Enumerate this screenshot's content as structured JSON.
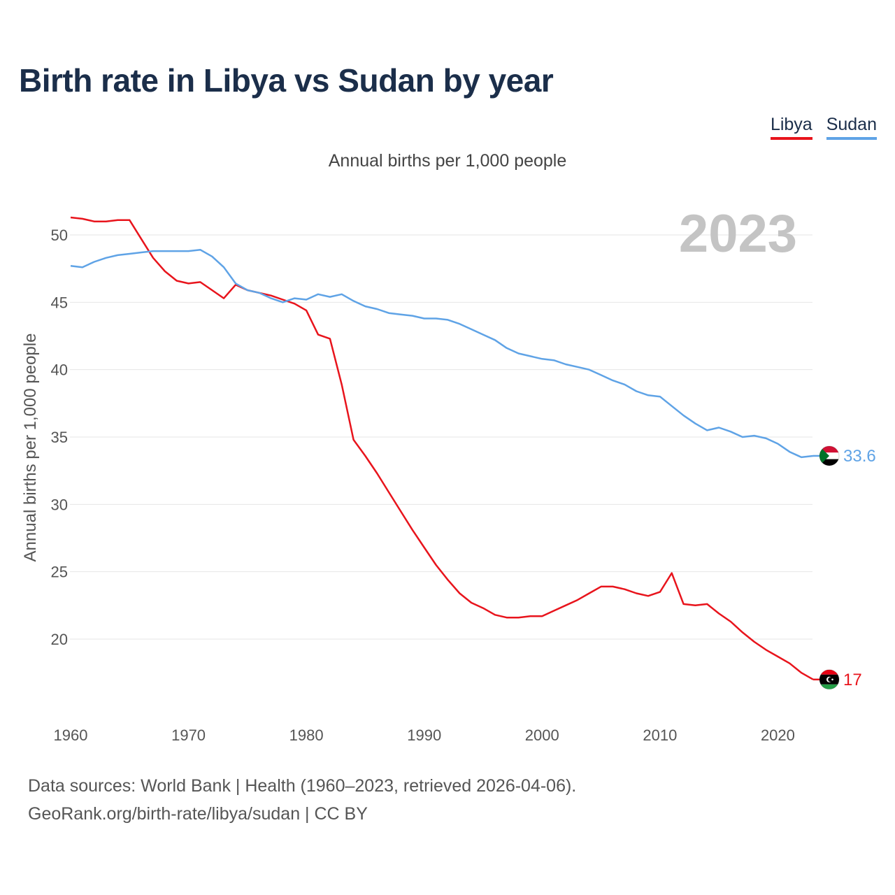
{
  "header": {
    "title": "Birth rate in Libya vs Sudan by year",
    "subtitle": "Annual births per 1,000 people"
  },
  "legend": [
    {
      "name": "Libya",
      "color": "#e8141c"
    },
    {
      "name": "Sudan",
      "color": "#5fa3e6"
    }
  ],
  "footer": {
    "source_line1": "Data sources: World Bank | Health (1960–2023, retrieved 2026-04-06).",
    "source_line2": "GeoRank.org/birth-rate/libya/sudan | CC BY"
  },
  "chart_data": {
    "type": "line",
    "title": "Birth rate in Libya vs Sudan by year",
    "subtitle": "Annual births per 1,000 people",
    "xlabel": "",
    "ylabel": "Annual births per 1,000 people",
    "current_year": "2023",
    "xlim": [
      1960,
      2023
    ],
    "ylim": [
      15.5,
      52.5
    ],
    "x_ticks": [
      1960,
      1970,
      1980,
      1990,
      2000,
      2010,
      2020
    ],
    "y_ticks": [
      20,
      25,
      30,
      35,
      40,
      45,
      50
    ],
    "grid": true,
    "legend_position": "top-right",
    "x": [
      1960,
      1961,
      1962,
      1963,
      1964,
      1965,
      1966,
      1967,
      1968,
      1969,
      1970,
      1971,
      1972,
      1973,
      1974,
      1975,
      1976,
      1977,
      1978,
      1979,
      1980,
      1981,
      1982,
      1983,
      1984,
      1985,
      1986,
      1987,
      1988,
      1989,
      1990,
      1991,
      1992,
      1993,
      1994,
      1995,
      1996,
      1997,
      1998,
      1999,
      2000,
      2001,
      2002,
      2003,
      2004,
      2005,
      2006,
      2007,
      2008,
      2009,
      2010,
      2011,
      2012,
      2013,
      2014,
      2015,
      2016,
      2017,
      2018,
      2019,
      2020,
      2021,
      2022,
      2023
    ],
    "series": [
      {
        "name": "Libya",
        "color": "#e8141c",
        "end_label": "17",
        "flag_icon": "libya-flag-icon",
        "values": [
          51.3,
          51.2,
          51.0,
          51.0,
          51.1,
          51.1,
          49.7,
          48.3,
          47.3,
          46.6,
          46.4,
          46.5,
          45.9,
          45.3,
          46.3,
          45.9,
          45.7,
          45.5,
          45.2,
          44.9,
          44.4,
          42.6,
          42.3,
          38.9,
          34.8,
          33.6,
          32.3,
          30.9,
          29.5,
          28.1,
          26.8,
          25.5,
          24.4,
          23.4,
          22.7,
          22.3,
          21.8,
          21.6,
          21.6,
          21.7,
          21.7,
          22.1,
          22.5,
          22.9,
          23.4,
          23.9,
          23.9,
          23.7,
          23.4,
          23.2,
          23.5,
          24.9,
          22.6,
          22.5,
          22.6,
          21.9,
          21.3,
          20.5,
          19.8,
          19.2,
          18.7,
          18.2,
          17.5,
          17.0
        ]
      },
      {
        "name": "Sudan",
        "color": "#5fa3e6",
        "end_label": "33.6",
        "flag_icon": "sudan-flag-icon",
        "values": [
          47.7,
          47.6,
          48.0,
          48.3,
          48.5,
          48.6,
          48.7,
          48.8,
          48.8,
          48.8,
          48.8,
          48.9,
          48.4,
          47.6,
          46.4,
          45.9,
          45.7,
          45.3,
          45.0,
          45.3,
          45.2,
          45.6,
          45.4,
          45.6,
          45.1,
          44.7,
          44.5,
          44.2,
          44.1,
          44.0,
          43.8,
          43.8,
          43.7,
          43.4,
          43.0,
          42.6,
          42.2,
          41.6,
          41.2,
          41.0,
          40.8,
          40.7,
          40.4,
          40.2,
          40.0,
          39.6,
          39.2,
          38.9,
          38.4,
          38.1,
          38.0,
          37.3,
          36.6,
          36.0,
          35.5,
          35.7,
          35.4,
          35.0,
          35.1,
          34.9,
          34.5,
          33.9,
          33.5,
          33.6
        ]
      }
    ]
  }
}
